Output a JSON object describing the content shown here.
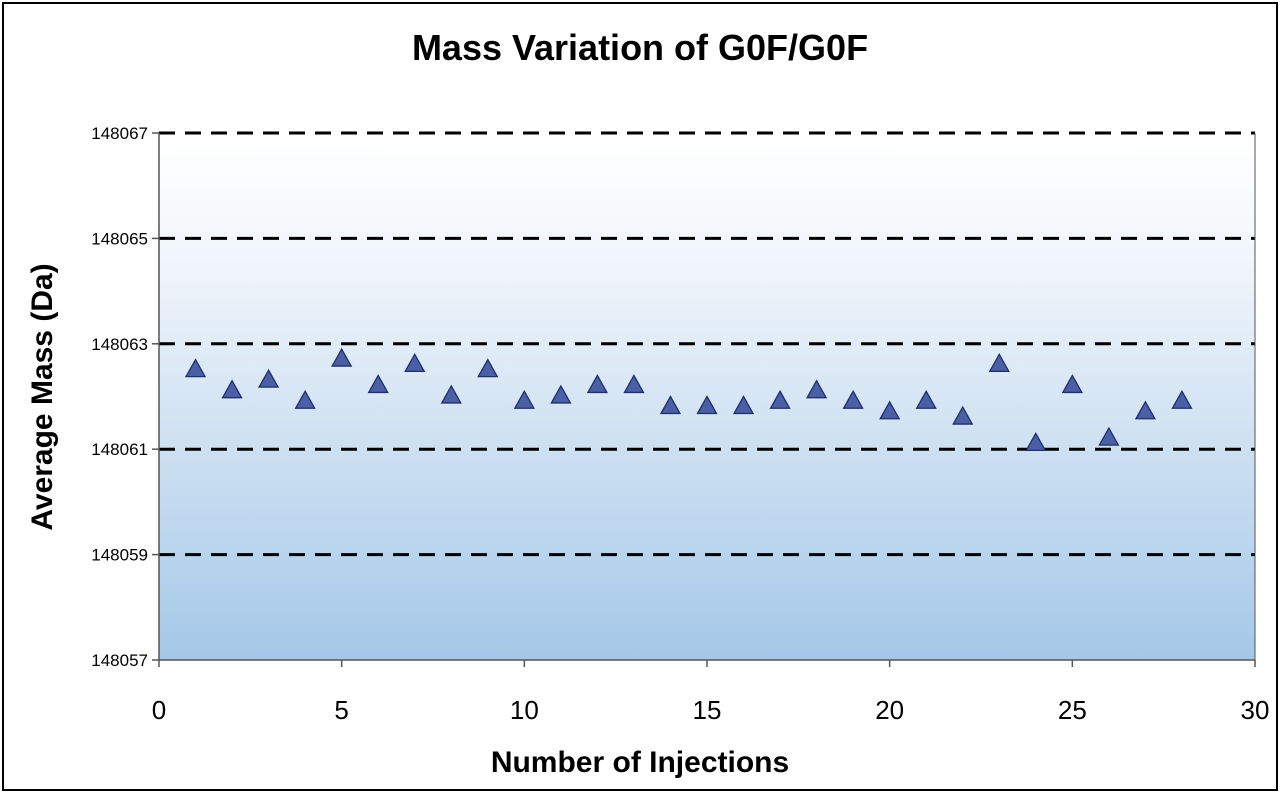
{
  "chart_data": {
    "type": "scatter",
    "title": "Mass Variation of G0F/G0F",
    "xlabel": "Number of Injections",
    "ylabel": "Average  Mass (Da)",
    "xlim": [
      0,
      30
    ],
    "ylim": [
      148057,
      148067
    ],
    "xticks": [
      "0",
      "5",
      "10",
      "15",
      "20",
      "25",
      "30"
    ],
    "yticks": [
      "148057",
      "148059",
      "148061",
      "148063",
      "148065",
      "148067"
    ],
    "grid": "horizontal dashed",
    "background": "gradient white to light blue",
    "marker": "triangle",
    "marker_color": "#4a5fa5",
    "series": [
      {
        "x": [
          1,
          2,
          3,
          4,
          5,
          6,
          7,
          8,
          9,
          10,
          11,
          12,
          13,
          14,
          15,
          16,
          17,
          18,
          19,
          20,
          21,
          22,
          23,
          24,
          25,
          26,
          27,
          28
        ],
        "y": [
          148062.5,
          148062.1,
          148062.3,
          148061.9,
          148062.7,
          148062.2,
          148062.6,
          148062.0,
          148062.5,
          148061.9,
          148062.0,
          148062.2,
          148062.2,
          148061.8,
          148061.8,
          148061.8,
          148061.9,
          148062.1,
          148061.9,
          148061.7,
          148061.9,
          148061.6,
          148062.6,
          148061.1,
          148062.2,
          148061.2,
          148061.7,
          148061.9
        ]
      }
    ]
  }
}
